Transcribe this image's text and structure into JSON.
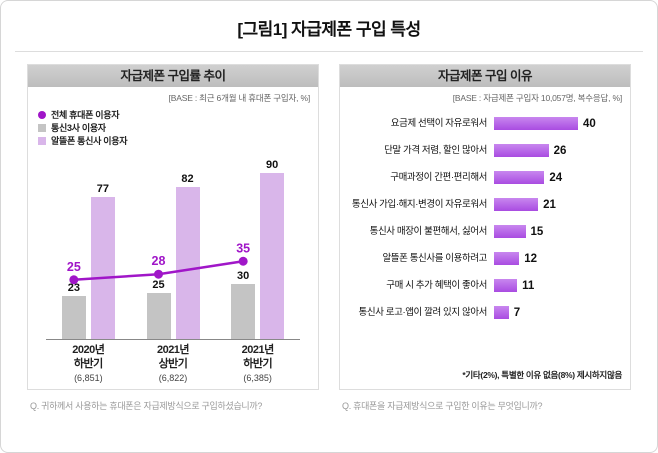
{
  "page": {
    "title": "[그림1] 자급제폰 구입 특성"
  },
  "colors": {
    "line_purple": "#a016c8",
    "bar_gray": "#c4c4c4",
    "bar_lavender": "#d9b6ea",
    "bar_purple": "#b558e6",
    "header_bg": "#c6c6c6"
  },
  "left_panel": {
    "header": "자급제폰 구입률 추이",
    "base": "[BASE : 최근 6개월 내 휴대폰 구입자, %]",
    "question": "Q. 귀하께서 사용하는 휴대폰은 자급제방식으로 구입하셨습니까?"
  },
  "right_panel": {
    "header": "자급제폰 구입 이유",
    "base": "[BASE : 자급제폰 구입자 10,057명, 복수응답, %]",
    "note": "*기타(2%), 특별한 이유 없음(8%) 제시하지않음",
    "question": "Q. 휴대폰을 자급제방식으로 구입한 이유는 무엇입니까?"
  },
  "chart_data": [
    {
      "type": "bar",
      "subtype": "grouped-vertical-with-line",
      "title": "자급제폰 구입률 추이",
      "categories": [
        "2020년 하반기",
        "2021년 상반기",
        "2021년 하반기"
      ],
      "category_sublabels": [
        [
          "2020년",
          "하반기"
        ],
        [
          "2021년",
          "상반기"
        ],
        [
          "2021년",
          "하반기"
        ]
      ],
      "category_bases": [
        "(6,851)",
        "(6,822)",
        "(6,385)"
      ],
      "ylim": [
        0,
        100
      ],
      "grid": false,
      "legend_position": "top-left",
      "series": [
        {
          "name": "전체 휴대폰 이용자",
          "render": "line",
          "values": [
            25,
            28,
            35
          ],
          "color": "#a016c8"
        },
        {
          "name": "통신3사 이용자",
          "render": "bar",
          "values": [
            23,
            25,
            30
          ],
          "color": "#c4c4c4"
        },
        {
          "name": "알뜰폰 통신사 이용자",
          "render": "bar",
          "values": [
            77,
            82,
            90
          ],
          "color": "#d9b6ea"
        }
      ]
    },
    {
      "type": "bar",
      "subtype": "horizontal",
      "title": "자급제폰 구입 이유",
      "categories": [
        "요금제 선택이 자유로워서",
        "단말 가격 저렴, 할인 많아서",
        "구매과정이 간편·편리해서",
        "통신사 가입·해지·변경이 자유로워서",
        "통신사 매장이 불편해서, 싫어서",
        "알뜰폰 통신사를 이용하려고",
        "구매 시 추가 혜택이 좋아서",
        "통신사 로고·앱이 깔려 있지 않아서"
      ],
      "values": [
        40,
        26,
        24,
        21,
        15,
        12,
        11,
        7
      ],
      "xlim": [
        0,
        44
      ],
      "bar_color": "#b558e6",
      "grid": false
    }
  ]
}
